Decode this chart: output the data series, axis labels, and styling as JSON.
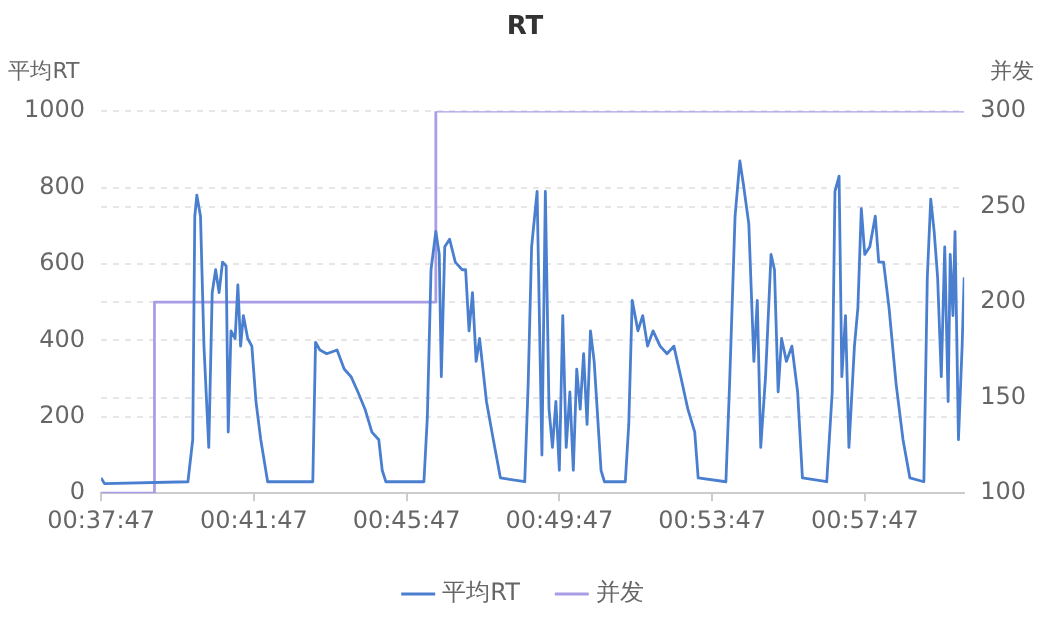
{
  "chart_data": {
    "type": "line",
    "title": "RT",
    "ylabel": "平均RT",
    "y2label": "并发",
    "xlim": [
      0.6297,
      1.0064
    ],
    "xticks": [
      {
        "value": 0.62972,
        "label": "00:37:47"
      },
      {
        "value": 0.69639,
        "label": "00:41:47"
      },
      {
        "value": 0.76306,
        "label": "00:45:47"
      },
      {
        "value": 0.82972,
        "label": "00:49:47"
      },
      {
        "value": 0.89639,
        "label": "00:53:47"
      },
      {
        "value": 0.96306,
        "label": "00:57:47"
      }
    ],
    "ylim": [
      0,
      1000
    ],
    "yticks": [
      0,
      200,
      400,
      600,
      800,
      1000
    ],
    "y2lim": [
      100,
      300
    ],
    "y2ticks": [
      100,
      150,
      200,
      250,
      300
    ],
    "grid": "y",
    "legend": "bottom",
    "marker": "none",
    "line_style": "solid",
    "series": [
      {
        "name": "平均RT",
        "color": "#4a7fd0",
        "x": [
          0.6297,
          0.6312,
          0.6676,
          0.6697,
          0.6706,
          0.6715,
          0.6731,
          0.6746,
          0.6767,
          0.6782,
          0.6797,
          0.6812,
          0.6827,
          0.6843,
          0.6852,
          0.6864,
          0.6882,
          0.6894,
          0.6906,
          0.6918,
          0.6937,
          0.6955,
          0.6973,
          0.6994,
          0.7024,
          0.7221,
          0.7233,
          0.7252,
          0.7282,
          0.7327,
          0.7358,
          0.7388,
          0.7418,
          0.7449,
          0.7479,
          0.7509,
          0.7524,
          0.754,
          0.7706,
          0.7721,
          0.7737,
          0.7758,
          0.7773,
          0.7782,
          0.7797,
          0.7818,
          0.7843,
          0.7873,
          0.7888,
          0.7903,
          0.7918,
          0.7934,
          0.7949,
          0.7979,
          0.8009,
          0.804,
          0.8146,
          0.8161,
          0.8176,
          0.82,
          0.8221,
          0.8236,
          0.8252,
          0.8267,
          0.8282,
          0.8297,
          0.8312,
          0.8327,
          0.8343,
          0.8358,
          0.8373,
          0.8388,
          0.8403,
          0.8418,
          0.8433,
          0.8449,
          0.8479,
          0.8494,
          0.8585,
          0.86,
          0.8615,
          0.864,
          0.8661,
          0.8682,
          0.8706,
          0.8737,
          0.8767,
          0.8797,
          0.8827,
          0.8858,
          0.8888,
          0.8903,
          0.9024,
          0.904,
          0.9064,
          0.9085,
          0.91,
          0.9124,
          0.9146,
          0.9161,
          0.9176,
          0.9197,
          0.9221,
          0.9236,
          0.9252,
          0.9267,
          0.9288,
          0.9312,
          0.9337,
          0.9358,
          0.9464,
          0.9488,
          0.95,
          0.9518,
          0.953,
          0.9546,
          0.9561,
          0.9585,
          0.96,
          0.9615,
          0.963,
          0.9652,
          0.9676,
          0.9691,
          0.9712,
          0.9736,
          0.9767,
          0.9797,
          0.9827,
          0.9888,
          0.9903,
          0.9918,
          0.9933,
          0.9948,
          0.9964,
          0.9979,
          0.9994,
          1.0003,
          1.0015,
          1.0024,
          1.0039,
          1.0055,
          1.0064
        ],
        "values": [
          40,
          25,
          30,
          140,
          725,
          780,
          725,
          385,
          120,
          525,
          585,
          525,
          605,
          595,
          160,
          425,
          405,
          545,
          385,
          465,
          405,
          385,
          240,
          140,
          30,
          30,
          395,
          375,
          365,
          375,
          325,
          305,
          265,
          220,
          160,
          140,
          60,
          30,
          30,
          200,
          585,
          685,
          625,
          305,
          645,
          665,
          605,
          585,
          585,
          425,
          525,
          345,
          405,
          240,
          140,
          40,
          30,
          285,
          645,
          790,
          100,
          790,
          220,
          120,
          240,
          60,
          465,
          120,
          265,
          60,
          325,
          220,
          365,
          180,
          425,
          345,
          60,
          30,
          30,
          180,
          505,
          425,
          465,
          385,
          425,
          385,
          365,
          385,
          305,
          220,
          160,
          40,
          30,
          285,
          725,
          870,
          810,
          705,
          345,
          505,
          120,
          305,
          625,
          585,
          265,
          405,
          345,
          385,
          265,
          40,
          30,
          265,
          790,
          830,
          305,
          465,
          120,
          385,
          485,
          745,
          625,
          645,
          725,
          605,
          605,
          485,
          285,
          140,
          40,
          30,
          565,
          770,
          685,
          565,
          305,
          645,
          240,
          625,
          465,
          685,
          140,
          385,
          565
        ]
      },
      {
        "name": "并发",
        "color": "#a99ee6",
        "type": "step",
        "axis": "y2",
        "x": [
          0.6297,
          0.653,
          0.7758,
          1.0064
        ],
        "values": [
          100,
          200,
          300,
          300
        ]
      }
    ]
  }
}
